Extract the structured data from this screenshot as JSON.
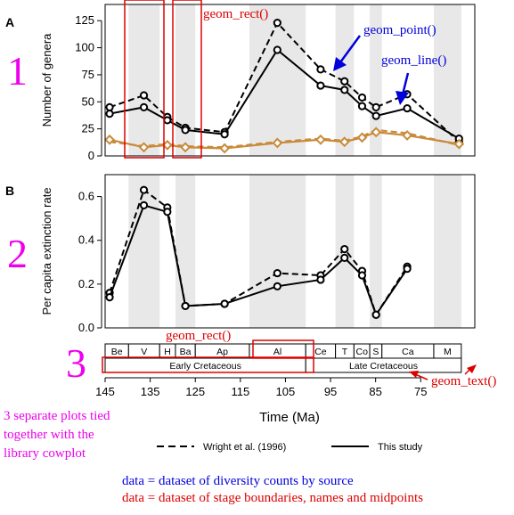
{
  "colors": {
    "shade": "#e8e8e8",
    "line": "#000000",
    "point_orange": "#c98a3a",
    "annot_red": "#dd0000",
    "annot_blue": "#0000dd",
    "annot_magenta": "#ee00ee"
  },
  "chart_data": [
    {
      "id": "A",
      "type": "line",
      "panel_label": "A",
      "ylabel": "Number of genera",
      "xlim": [
        145,
        63
      ],
      "ylim": [
        0,
        140
      ],
      "yticks": [
        0,
        25,
        50,
        75,
        100,
        125
      ],
      "x_reversed": true,
      "shaded_bands": [
        [
          139.8,
          132.9
        ],
        [
          129.4,
          125
        ],
        [
          113,
          100.5
        ],
        [
          93.9,
          89.8
        ],
        [
          86.3,
          83.6
        ],
        [
          72.1,
          66
        ]
      ],
      "series": [
        {
          "name": "Wright et al. (1996)",
          "style": "dashed",
          "x": [
            144,
            136.4,
            131.2,
            127.2,
            118.5,
            106.8,
            97.2,
            91.9,
            88,
            84.9,
            78,
            66.5
          ],
          "y": [
            45,
            56,
            36,
            26,
            22,
            123,
            80,
            69,
            54,
            45,
            57,
            13
          ]
        },
        {
          "name": "This study",
          "style": "solid",
          "x": [
            144,
            136.4,
            131.2,
            127.2,
            118.5,
            106.8,
            97.2,
            91.9,
            88,
            84.9,
            78,
            66.5
          ],
          "y": [
            39,
            45,
            33,
            24,
            20,
            98,
            65,
            61,
            46,
            37,
            44,
            16
          ]
        },
        {
          "name": "",
          "style": "dashed-orange",
          "x": [
            144,
            136.4,
            131.2,
            127.2,
            118.5,
            106.8,
            97.2,
            91.9,
            88,
            84.9,
            78,
            66.5
          ],
          "y": [
            13,
            9,
            11,
            9,
            8,
            13,
            16,
            14,
            18,
            24,
            21,
            10
          ]
        },
        {
          "name": "",
          "style": "solid-orange",
          "x": [
            144,
            136.4,
            131.2,
            127.2,
            118.5,
            106.8,
            97.2,
            91.9,
            88,
            84.9,
            78,
            66.5
          ],
          "y": [
            15,
            8,
            10,
            8,
            7,
            12,
            15,
            13,
            17,
            22,
            19,
            11
          ]
        }
      ]
    },
    {
      "id": "B",
      "type": "line",
      "panel_label": "B",
      "ylabel": "Per capita extinction rate",
      "xlim": [
        145,
        63
      ],
      "ylim": [
        0,
        0.7
      ],
      "yticks": [
        0.0,
        0.2,
        0.4,
        0.6
      ],
      "x_reversed": true,
      "shaded_bands": [
        [
          139.8,
          132.9
        ],
        [
          129.4,
          125
        ],
        [
          113,
          100.5
        ],
        [
          93.9,
          89.8
        ],
        [
          86.3,
          83.6
        ],
        [
          72.1,
          66
        ]
      ],
      "series": [
        {
          "name": "Wright et al. (1996)",
          "style": "dashed",
          "x": [
            144,
            136.4,
            131.2,
            127.2,
            118.5,
            106.8,
            97.2,
            91.9,
            88,
            84.9,
            78
          ],
          "y": [
            0.16,
            0.63,
            0.55,
            0.1,
            0.11,
            0.25,
            0.24,
            0.36,
            0.26,
            0.06,
            0.28
          ]
        },
        {
          "name": "This study",
          "style": "solid",
          "x": [
            144,
            136.4,
            131.2,
            127.2,
            118.5,
            106.8,
            97.2,
            91.9,
            88,
            84.9,
            78
          ],
          "y": [
            0.14,
            0.56,
            0.53,
            0.1,
            0.11,
            0.19,
            0.22,
            0.32,
            0.24,
            0.06,
            0.27
          ]
        }
      ]
    }
  ],
  "timescale": {
    "stages": [
      {
        "name": "Be",
        "start": 145,
        "end": 139.8
      },
      {
        "name": "V",
        "start": 139.8,
        "end": 132.9
      },
      {
        "name": "H",
        "start": 132.9,
        "end": 129.4
      },
      {
        "name": "Ba",
        "start": 129.4,
        "end": 125
      },
      {
        "name": "Ap",
        "start": 125,
        "end": 113
      },
      {
        "name": "Al",
        "start": 113,
        "end": 100.5
      },
      {
        "name": "Ce",
        "start": 100.5,
        "end": 93.9
      },
      {
        "name": "T",
        "start": 93.9,
        "end": 89.8
      },
      {
        "name": "Co",
        "start": 89.8,
        "end": 86.3
      },
      {
        "name": "S",
        "start": 86.3,
        "end": 83.6
      },
      {
        "name": "Ca",
        "start": 83.6,
        "end": 72.1
      },
      {
        "name": "M",
        "start": 72.1,
        "end": 66
      }
    ],
    "epochs": [
      {
        "name": "Early Cretaceous",
        "start": 145,
        "end": 100.5
      },
      {
        "name": "Late Cretaceous",
        "start": 100.5,
        "end": 66
      }
    ],
    "xticks": [
      145,
      135,
      125,
      115,
      105,
      95,
      85,
      75
    ],
    "xlabel": "Time (Ma)"
  },
  "legend": {
    "items": [
      {
        "label": "Wright et al. (1996)",
        "style": "dashed"
      },
      {
        "label": "This study",
        "style": "solid"
      }
    ]
  },
  "annotations": {
    "geom_rect_top": "geom_rect()",
    "geom_point": "geom_point()",
    "geom_line": "geom_line()",
    "geom_rect_bottom": "geom_rect()",
    "geom_text": "geom_text()",
    "num1": "1",
    "num2": "2",
    "num3": "3",
    "cowplot_note": [
      "3 separate plots tied",
      "together with the",
      "library cowplot"
    ],
    "data_blue": "data = dataset of diversity counts by source",
    "data_red": "data = dataset of stage boundaries, names and midpoints"
  }
}
